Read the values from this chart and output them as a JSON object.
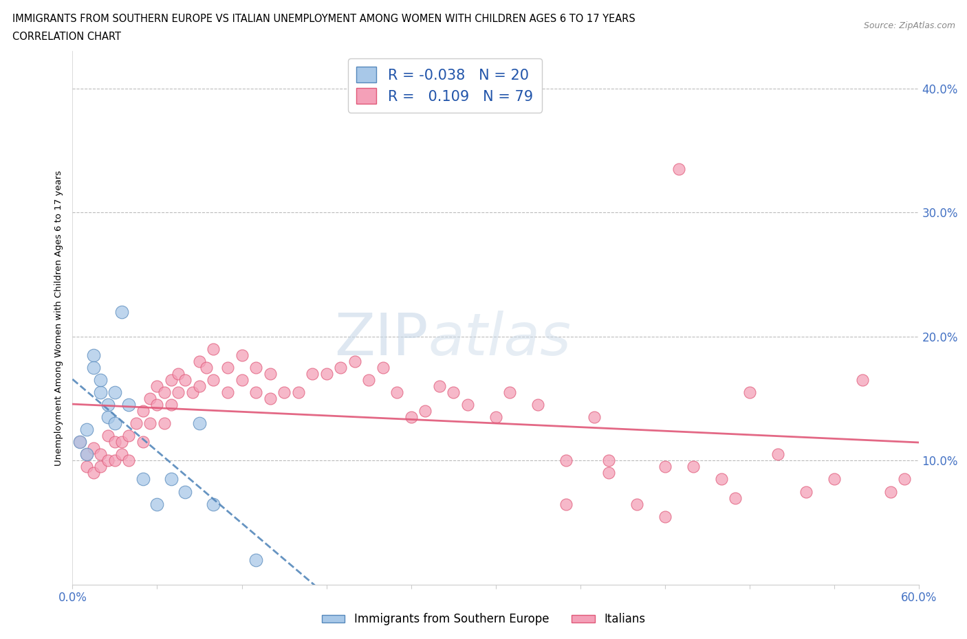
{
  "title_line1": "IMMIGRANTS FROM SOUTHERN EUROPE VS ITALIAN UNEMPLOYMENT AMONG WOMEN WITH CHILDREN AGES 6 TO 17 YEARS",
  "title_line2": "CORRELATION CHART",
  "source_text": "Source: ZipAtlas.com",
  "ylabel": "Unemployment Among Women with Children Ages 6 to 17 years",
  "yticks": [
    "10.0%",
    "20.0%",
    "30.0%",
    "40.0%"
  ],
  "ytick_vals": [
    0.1,
    0.2,
    0.3,
    0.4
  ],
  "xlim": [
    0.0,
    0.6
  ],
  "ylim": [
    0.0,
    0.43
  ],
  "legend_label1": "Immigrants from Southern Europe",
  "legend_label2": "Italians",
  "R1": "-0.038",
  "N1": "20",
  "R2": "0.109",
  "N2": "79",
  "color_blue": "#a8c8e8",
  "color_pink": "#f4a0b8",
  "color_blue_line": "#5588bb",
  "color_pink_line": "#e05878",
  "watermark": "ZIPatlas",
  "blue_scatter_x": [
    0.005,
    0.01,
    0.01,
    0.015,
    0.015,
    0.02,
    0.02,
    0.025,
    0.025,
    0.03,
    0.03,
    0.035,
    0.04,
    0.05,
    0.06,
    0.07,
    0.08,
    0.09,
    0.1,
    0.13
  ],
  "blue_scatter_y": [
    0.115,
    0.125,
    0.105,
    0.185,
    0.175,
    0.155,
    0.165,
    0.145,
    0.135,
    0.155,
    0.13,
    0.22,
    0.145,
    0.085,
    0.065,
    0.085,
    0.075,
    0.13,
    0.065,
    0.02
  ],
  "pink_scatter_x": [
    0.005,
    0.01,
    0.01,
    0.015,
    0.015,
    0.02,
    0.02,
    0.025,
    0.025,
    0.03,
    0.03,
    0.035,
    0.035,
    0.04,
    0.04,
    0.045,
    0.05,
    0.05,
    0.055,
    0.055,
    0.06,
    0.06,
    0.065,
    0.065,
    0.07,
    0.07,
    0.075,
    0.075,
    0.08,
    0.085,
    0.09,
    0.09,
    0.095,
    0.1,
    0.1,
    0.11,
    0.11,
    0.12,
    0.12,
    0.13,
    0.13,
    0.14,
    0.14,
    0.15,
    0.16,
    0.17,
    0.18,
    0.19,
    0.2,
    0.21,
    0.22,
    0.23,
    0.24,
    0.25,
    0.26,
    0.27,
    0.28,
    0.3,
    0.31,
    0.33,
    0.35,
    0.37,
    0.38,
    0.4,
    0.42,
    0.44,
    0.46,
    0.48,
    0.5,
    0.52,
    0.54,
    0.56,
    0.58,
    0.59,
    0.43,
    0.38,
    0.35,
    0.42,
    0.47
  ],
  "pink_scatter_y": [
    0.115,
    0.105,
    0.095,
    0.11,
    0.09,
    0.105,
    0.095,
    0.12,
    0.1,
    0.115,
    0.1,
    0.115,
    0.105,
    0.12,
    0.1,
    0.13,
    0.14,
    0.115,
    0.15,
    0.13,
    0.16,
    0.145,
    0.155,
    0.13,
    0.165,
    0.145,
    0.17,
    0.155,
    0.165,
    0.155,
    0.18,
    0.16,
    0.175,
    0.19,
    0.165,
    0.175,
    0.155,
    0.185,
    0.165,
    0.175,
    0.155,
    0.17,
    0.15,
    0.155,
    0.155,
    0.17,
    0.17,
    0.175,
    0.18,
    0.165,
    0.175,
    0.155,
    0.135,
    0.14,
    0.16,
    0.155,
    0.145,
    0.135,
    0.155,
    0.145,
    0.1,
    0.135,
    0.1,
    0.065,
    0.095,
    0.095,
    0.085,
    0.155,
    0.105,
    0.075,
    0.085,
    0.165,
    0.075,
    0.085,
    0.335,
    0.09,
    0.065,
    0.055,
    0.07
  ]
}
